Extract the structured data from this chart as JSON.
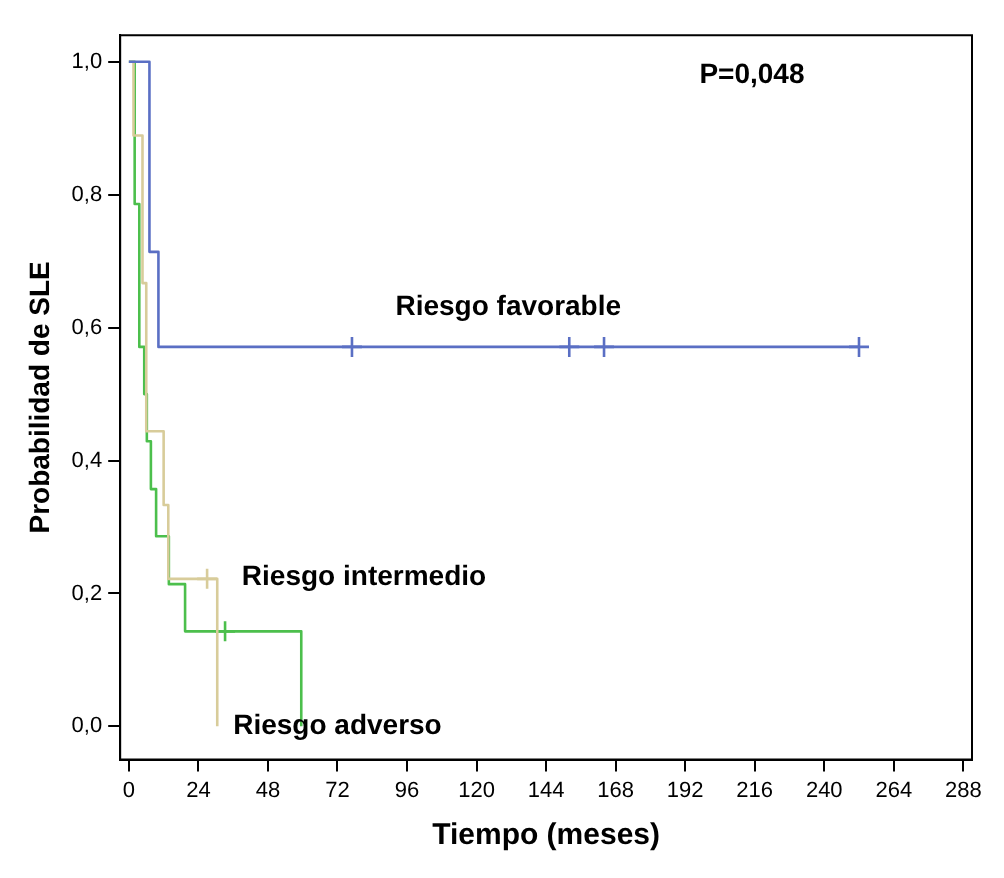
{
  "chart_data": {
    "type": "step",
    "xlabel": "Tiempo (meses)",
    "ylabel": "Probabilidad de SLE",
    "annotations": [
      "P=0,048"
    ],
    "xlim": [
      -3,
      291
    ],
    "ylim": [
      -0.05,
      1.04
    ],
    "xticks": [
      0,
      24,
      48,
      72,
      96,
      120,
      144,
      168,
      192,
      216,
      240,
      264,
      288
    ],
    "yticks": [
      {
        "value": 0,
        "label": "0,0"
      },
      {
        "value": 0.2,
        "label": "0,2"
      },
      {
        "value": 0.4,
        "label": "0,4"
      },
      {
        "value": 0.6,
        "label": "0,6"
      },
      {
        "value": 0.8,
        "label": "0,8"
      },
      {
        "value": 1,
        "label": "1,0"
      }
    ],
    "grid": false,
    "legend": false,
    "marker": "none",
    "series": [
      {
        "name": "Riesgo favorable",
        "color": "#5a6fc4",
        "x": [
          0,
          7.1,
          10.2,
          252
        ],
        "values": [
          1,
          0.714,
          0.571,
          0.571
        ]
      },
      {
        "name": "Riesgo intermedio",
        "color": "#d8cc9a",
        "x": [
          0,
          1.6,
          4.7,
          6,
          12,
          13.6,
          30.5
        ],
        "values": [
          1,
          0.889,
          0.667,
          0.444,
          0.333,
          0.222,
          0
        ]
      },
      {
        "name": "Riesgo adverso",
        "color": "#4cbf4c",
        "x": [
          0,
          2,
          3.6,
          5.3,
          6.2,
          7.6,
          9.4,
          13.8,
          19.4,
          59.5
        ],
        "values": [
          1,
          0.786,
          0.571,
          0.5,
          0.429,
          0.357,
          0.286,
          0.214,
          0.143,
          0
        ]
      },
      {
        "type": "scatter",
        "marker": "cross",
        "color": "#5a6fc4",
        "x": [
          77,
          152,
          164,
          252
        ],
        "values": [
          0.571,
          0.571,
          0.571,
          0.571
        ]
      },
      {
        "type": "scatter",
        "marker": "cross",
        "color": "#d8cc9a",
        "x": [
          27
        ],
        "values": [
          0.222
        ]
      },
      {
        "type": "scatter",
        "marker": "cross",
        "color": "#4cbf4c",
        "x": [
          33.2
        ],
        "values": [
          0.143
        ]
      }
    ]
  }
}
